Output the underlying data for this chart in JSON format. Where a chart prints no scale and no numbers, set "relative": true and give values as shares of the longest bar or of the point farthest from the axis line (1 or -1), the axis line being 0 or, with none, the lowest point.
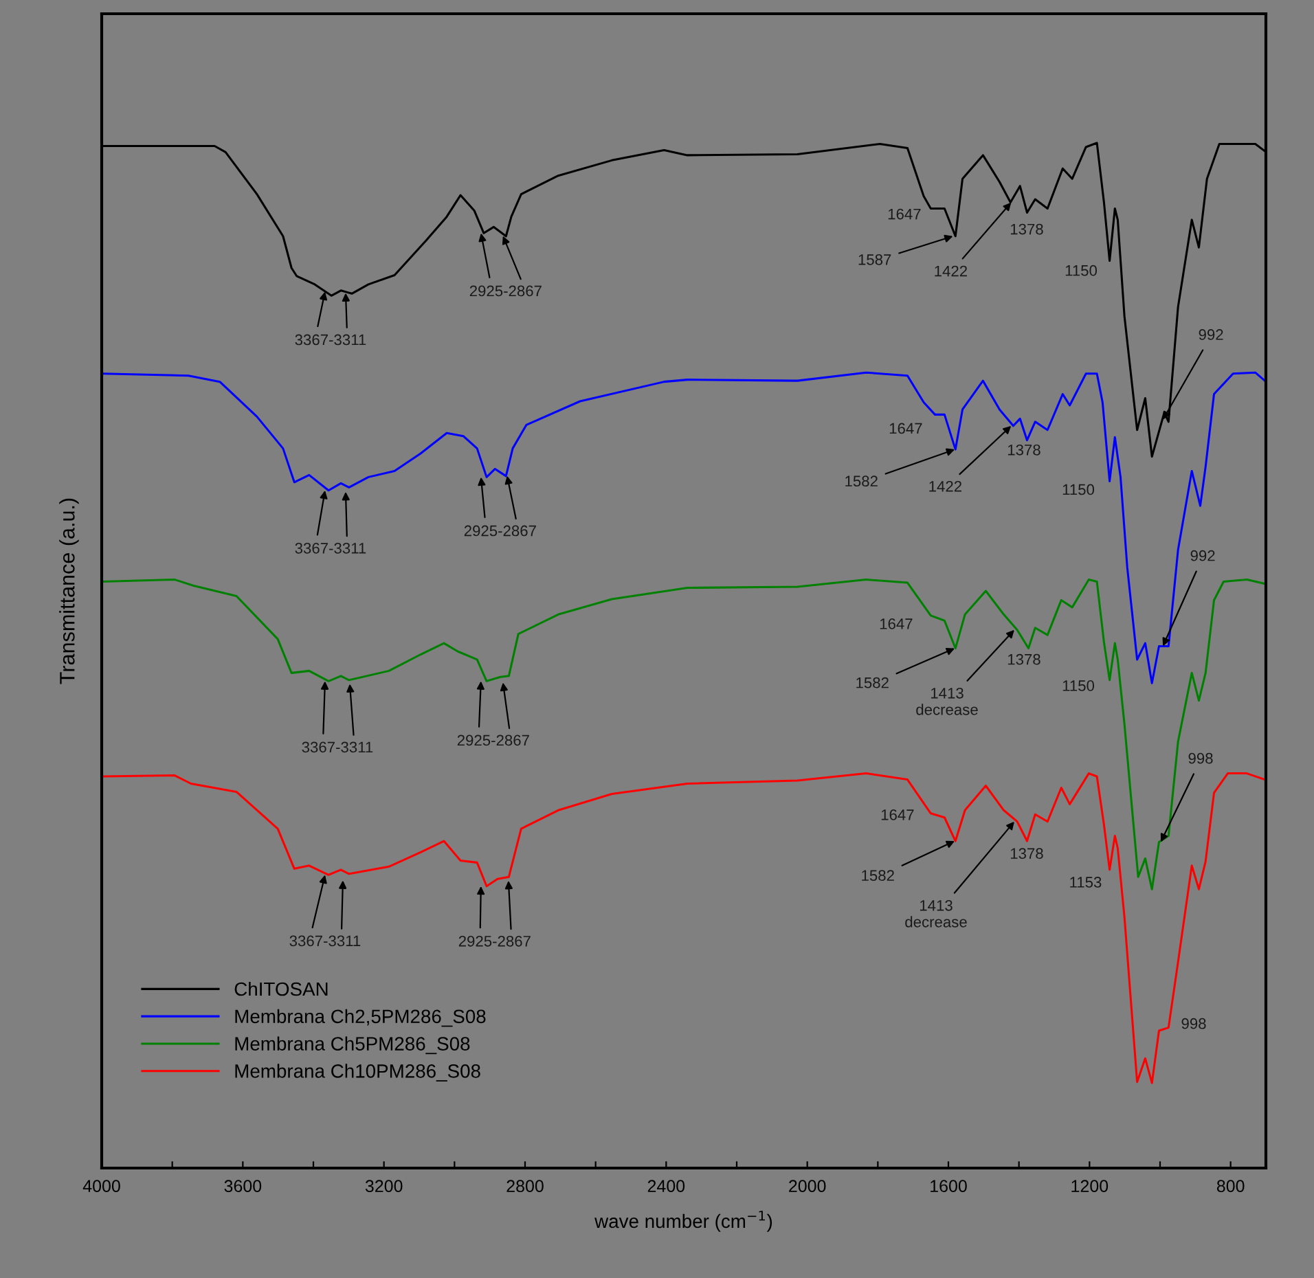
{
  "chart_data": {
    "type": "line",
    "relative": true,
    "xlabel": "wave number (cm$^{−1}$)",
    "ylabel": "Transmittance (a.u.)",
    "xlim": [
      4000,
      700
    ],
    "xticks": [
      4000,
      {
        "value": 3800,
        "label": null
      },
      3600,
      {
        "value": 3400,
        "label": null
      },
      3200,
      {
        "value": 3000,
        "label": null
      },
      2800,
      {
        "value": 2600,
        "label": null
      },
      2400,
      {
        "value": 2200,
        "label": null
      },
      2000,
      {
        "value": 1800,
        "label": null
      },
      1600,
      {
        "value": 1400,
        "label": null
      },
      1200,
      {
        "value": 1000,
        "label": null
      },
      800
    ],
    "grid": false,
    "legend": "bottom left",
    "marker": "none",
    "line_style": "solid",
    "series": [
      {
        "name": "ChITOSAN",
        "color": "#000000",
        "x": [
          4000,
          3680,
          3649,
          3560,
          3486,
          3462,
          3447,
          3396,
          3349,
          3322,
          3291,
          3244,
          3170,
          3080,
          3022,
          2983,
          2944,
          2917,
          2889,
          2854,
          2839,
          2811,
          2706,
          2554,
          2406,
          2340,
          2028,
          1794,
          1716,
          1670,
          1650,
          1611,
          1580,
          1560,
          1502,
          1455,
          1424,
          1397,
          1377,
          1354,
          1319,
          1276,
          1249,
          1210,
          1179,
          1159,
          1143,
          1128,
          1120,
          1101,
          1065,
          1042,
          1023,
          988,
          976,
          949,
          910,
          890,
          867,
          832,
          730,
          703
        ],
        "values": [
          0.997,
          0.997,
          0.991,
          0.95,
          0.909,
          0.878,
          0.87,
          0.862,
          0.851,
          0.856,
          0.853,
          0.862,
          0.871,
          0.905,
          0.928,
          0.949,
          0.934,
          0.912,
          0.918,
          0.909,
          0.928,
          0.95,
          0.968,
          0.983,
          0.993,
          0.988,
          0.989,
          0.999,
          0.995,
          0.948,
          0.936,
          0.936,
          0.909,
          0.965,
          0.988,
          0.962,
          0.942,
          0.958,
          0.932,
          0.945,
          0.936,
          0.975,
          0.965,
          0.996,
          1.0,
          0.942,
          0.885,
          0.936,
          0.925,
          0.831,
          0.72,
          0.751,
          0.694,
          0.737,
          0.728,
          0.84,
          0.925,
          0.898,
          0.965,
          0.999,
          0.999,
          0.992
        ]
      },
      {
        "name": "Membrana Ch2,5PM286_S08",
        "color": "#0000ff",
        "x": [
          4000,
          3754,
          3665,
          3560,
          3486,
          3454,
          3412,
          3357,
          3322,
          3299,
          3244,
          3170,
          3096,
          3022,
          2975,
          2936,
          2909,
          2885,
          2854,
          2835,
          2796,
          2644,
          2406,
          2340,
          2028,
          1833,
          1716,
          1670,
          1638,
          1611,
          1580,
          1560,
          1502,
          1455,
          1416,
          1397,
          1377,
          1354,
          1319,
          1276,
          1256,
          1210,
          1179,
          1163,
          1143,
          1128,
          1112,
          1093,
          1065,
          1042,
          1023,
          1003,
          976,
          949,
          910,
          886,
          871,
          847,
          793,
          730,
          703
        ],
        "values": [
          0.775,
          0.773,
          0.767,
          0.733,
          0.702,
          0.669,
          0.676,
          0.661,
          0.668,
          0.664,
          0.674,
          0.68,
          0.697,
          0.717,
          0.714,
          0.702,
          0.674,
          0.682,
          0.675,
          0.702,
          0.725,
          0.748,
          0.767,
          0.769,
          0.768,
          0.776,
          0.773,
          0.747,
          0.735,
          0.735,
          0.701,
          0.74,
          0.768,
          0.74,
          0.724,
          0.731,
          0.71,
          0.728,
          0.72,
          0.755,
          0.744,
          0.775,
          0.775,
          0.747,
          0.67,
          0.713,
          0.674,
          0.586,
          0.496,
          0.512,
          0.473,
          0.509,
          0.509,
          0.603,
          0.68,
          0.646,
          0.684,
          0.755,
          0.775,
          0.776,
          0.768
        ]
      },
      {
        "name": "Membrana Ch5PM286_S08",
        "color": "#008000",
        "x": [
          4000,
          3793,
          3739,
          3618,
          3501,
          3462,
          3412,
          3357,
          3322,
          3299,
          3186,
          3096,
          3030,
          2991,
          2936,
          2909,
          2870,
          2846,
          2819,
          2706,
          2554,
          2340,
          2028,
          1833,
          1716,
          1650,
          1611,
          1580,
          1553,
          1494,
          1443,
          1405,
          1373,
          1354,
          1319,
          1280,
          1249,
          1202,
          1179,
          1159,
          1143,
          1128,
          1120,
          1101,
          1062,
          1042,
          1023,
          1003,
          976,
          949,
          910,
          890,
          871,
          847,
          820,
          754,
          703
        ],
        "values": [
          0.572,
          0.574,
          0.568,
          0.558,
          0.516,
          0.483,
          0.485,
          0.475,
          0.48,
          0.476,
          0.485,
          0.501,
          0.512,
          0.504,
          0.496,
          0.475,
          0.479,
          0.48,
          0.521,
          0.54,
          0.555,
          0.566,
          0.567,
          0.574,
          0.571,
          0.539,
          0.534,
          0.507,
          0.54,
          0.563,
          0.54,
          0.525,
          0.507,
          0.527,
          0.52,
          0.554,
          0.547,
          0.574,
          0.572,
          0.513,
          0.476,
          0.512,
          0.496,
          0.433,
          0.284,
          0.302,
          0.272,
          0.318,
          0.324,
          0.416,
          0.483,
          0.456,
          0.483,
          0.554,
          0.572,
          0.574,
          0.57
        ]
      },
      {
        "name": "Membrana Ch10PM286_S08",
        "color": "#ff0000",
        "x": [
          4000,
          3793,
          3747,
          3618,
          3501,
          3454,
          3412,
          3357,
          3322,
          3299,
          3186,
          3096,
          3030,
          2983,
          2936,
          2909,
          2878,
          2846,
          2811,
          2706,
          2554,
          2340,
          2028,
          1833,
          1716,
          1650,
          1611,
          1580,
          1553,
          1494,
          1443,
          1405,
          1377,
          1354,
          1319,
          1280,
          1256,
          1202,
          1179,
          1159,
          1143,
          1128,
          1120,
          1101,
          1065,
          1042,
          1023,
          1003,
          976,
          949,
          910,
          890,
          871,
          847,
          808,
          754,
          703
        ],
        "values": [
          0.382,
          0.383,
          0.375,
          0.367,
          0.331,
          0.292,
          0.295,
          0.286,
          0.291,
          0.287,
          0.294,
          0.308,
          0.319,
          0.3,
          0.298,
          0.275,
          0.282,
          0.284,
          0.331,
          0.349,
          0.365,
          0.375,
          0.378,
          0.385,
          0.379,
          0.346,
          0.342,
          0.319,
          0.349,
          0.373,
          0.349,
          0.338,
          0.319,
          0.345,
          0.338,
          0.371,
          0.355,
          0.385,
          0.382,
          0.335,
          0.291,
          0.324,
          0.312,
          0.245,
          0.084,
          0.107,
          0.083,
          0.134,
          0.137,
          0.201,
          0.295,
          0.272,
          0.299,
          0.366,
          0.385,
          0.385,
          0.379
        ]
      }
    ],
    "annotations": [
      {
        "text": "3367-3311",
        "x": 3367,
        "y": 0.855
      },
      {
        "text": "2925-2867",
        "x": 2925,
        "y": 0.912
      },
      {
        "text": "1647",
        "x": 1647,
        "y": 0.936
      },
      {
        "text": "1587",
        "x": 1587,
        "y": 0.909
      },
      {
        "text": "1422",
        "x": 1422,
        "y": 0.942
      },
      {
        "text": "1378",
        "x": 1378,
        "y": 0.932
      },
      {
        "text": "1150",
        "x": 1150,
        "y": 0.885
      },
      {
        "text": "992",
        "x": 992,
        "y": 0.73
      },
      {
        "text": "3367-3311",
        "x": 3367,
        "y": 0.661
      },
      {
        "text": "2925-2867",
        "x": 2925,
        "y": 0.674
      },
      {
        "text": "1647",
        "x": 1647,
        "y": 0.735
      },
      {
        "text": "1582",
        "x": 1582,
        "y": 0.701
      },
      {
        "text": "1422",
        "x": 1422,
        "y": 0.724
      },
      {
        "text": "1378",
        "x": 1378,
        "y": 0.71
      },
      {
        "text": "1150",
        "x": 1150,
        "y": 0.67
      },
      {
        "text": "992",
        "x": 992,
        "y": 0.509
      },
      {
        "text": "3367-3311",
        "x": 3367,
        "y": 0.475
      },
      {
        "text": "2925-2867",
        "x": 2925,
        "y": 0.475
      },
      {
        "text": "1647",
        "x": 1647,
        "y": 0.539
      },
      {
        "text": "1582",
        "x": 1582,
        "y": 0.507
      },
      {
        "text": "1413\ndecrease",
        "x": 1413,
        "y": 0.525
      },
      {
        "text": "1378",
        "x": 1378,
        "y": 0.507
      },
      {
        "text": "1150",
        "x": 1150,
        "y": 0.476
      },
      {
        "text": "998",
        "x": 998,
        "y": 0.318
      },
      {
        "text": "3367-3311",
        "x": 3367,
        "y": 0.286
      },
      {
        "text": "2925-2867",
        "x": 2925,
        "y": 0.275
      },
      {
        "text": "1647",
        "x": 1647,
        "y": 0.346
      },
      {
        "text": "1582",
        "x": 1582,
        "y": 0.319
      },
      {
        "text": "1413\ndecrease",
        "x": 1413,
        "y": 0.338
      },
      {
        "text": "1378",
        "x": 1378,
        "y": 0.319
      },
      {
        "text": "1153",
        "x": 1153,
        "y": 0.291
      },
      {
        "text": "998",
        "x": 998,
        "y": 0.137
      }
    ]
  }
}
